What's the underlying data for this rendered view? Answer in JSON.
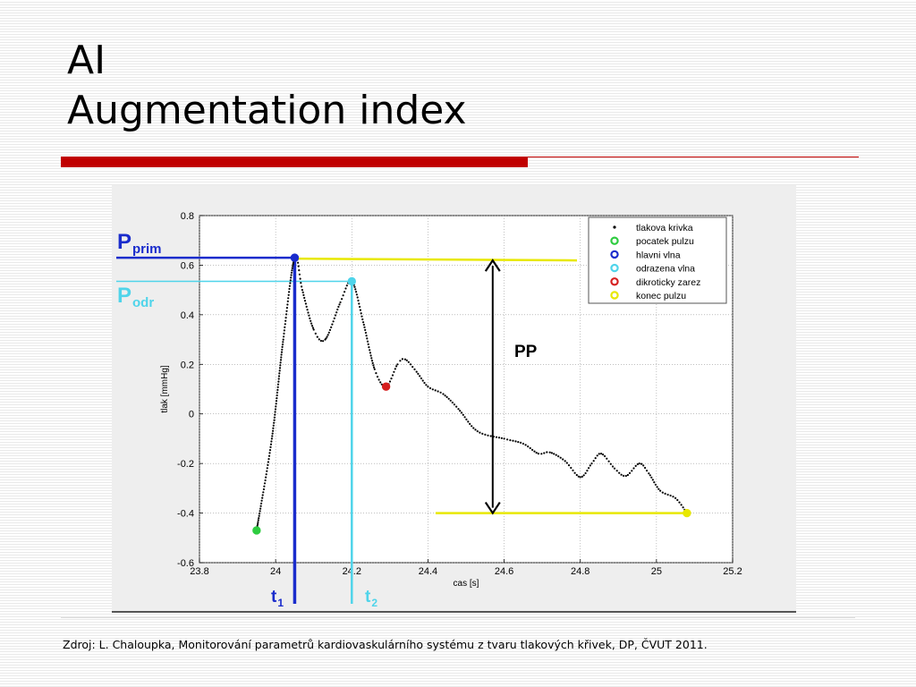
{
  "slide": {
    "title_line1": "AI",
    "title_line2": "Augmentation index",
    "source": "Zdroj: L. Chaloupka, Monitorování parametrů kardiovaskulárního systému z tvaru tlakových křivek, DP, ČVUT 2011."
  },
  "colors": {
    "accent_red": "#c00000",
    "primary_blue": "#1a2ccc",
    "reflected_cyan": "#4fd4ea",
    "marker_yellow": "#e8e800",
    "start_green": "#2ecc40",
    "notch_red": "#d62020"
  },
  "annotations": {
    "p_prim_main": "P",
    "p_prim_sub": "prim",
    "p_odr_main": "P",
    "p_odr_sub": "odr",
    "t1_main": "t",
    "t1_sub": "1",
    "t2_main": "t",
    "t2_sub": "2",
    "pp": "PP"
  },
  "chart_data": {
    "type": "scatter",
    "xlabel": "cas [s]",
    "ylabel": "tlak [mmHg]",
    "xlim": [
      23.8,
      25.2
    ],
    "ylim": [
      -0.6,
      0.8
    ],
    "xticks": [
      23.8,
      24,
      24.2,
      24.4,
      24.6,
      24.8,
      25,
      25.2
    ],
    "yticks": [
      0.8,
      0.6,
      0.4,
      0.2,
      0,
      -0.2,
      -0.4,
      -0.6
    ],
    "x_tick_labels": [
      "23.8",
      "24",
      "24.2",
      "24.4",
      "24.6",
      "24.8",
      "25",
      "25.2"
    ],
    "y_tick_labels": [
      "0.8",
      "0.6",
      "0.4",
      "0.2",
      "0",
      "-0.2",
      "-0.4",
      "-0.6"
    ],
    "grid": true,
    "legend_position": "top-right",
    "legend": [
      {
        "label": "tlakova krivka",
        "marker": "dot",
        "color": "#000000"
      },
      {
        "label": "pocatek pulzu",
        "marker": "circle",
        "color": "#2ecc40"
      },
      {
        "label": "hlavni vlna",
        "marker": "circle",
        "color": "#1a2ccc"
      },
      {
        "label": "odrazena vlna",
        "marker": "circle",
        "color": "#4fd4ea"
      },
      {
        "label": "dikroticky zarez",
        "marker": "circle",
        "color": "#d62020"
      },
      {
        "label": "konec pulzu",
        "marker": "circle",
        "color": "#e8e800"
      }
    ],
    "series": [
      {
        "name": "tlakova krivka",
        "points": [
          [
            23.95,
            -0.47
          ],
          [
            23.99,
            -0.1
          ],
          [
            24.02,
            0.3
          ],
          [
            24.05,
            0.63
          ],
          [
            24.07,
            0.5
          ],
          [
            24.1,
            0.34
          ],
          [
            24.13,
            0.3
          ],
          [
            24.17,
            0.45
          ],
          [
            24.2,
            0.535
          ],
          [
            24.23,
            0.37
          ],
          [
            24.26,
            0.18
          ],
          [
            24.29,
            0.11
          ],
          [
            24.32,
            0.2
          ],
          [
            24.34,
            0.22
          ],
          [
            24.37,
            0.17
          ],
          [
            24.4,
            0.11
          ],
          [
            24.44,
            0.08
          ],
          [
            24.48,
            0.02
          ],
          [
            24.53,
            -0.07
          ],
          [
            24.6,
            -0.1
          ],
          [
            24.65,
            -0.12
          ],
          [
            24.69,
            -0.16
          ],
          [
            24.72,
            -0.155
          ],
          [
            24.76,
            -0.19
          ],
          [
            24.8,
            -0.255
          ],
          [
            24.83,
            -0.2
          ],
          [
            24.855,
            -0.16
          ],
          [
            24.89,
            -0.22
          ],
          [
            24.92,
            -0.25
          ],
          [
            24.955,
            -0.2
          ],
          [
            24.98,
            -0.24
          ],
          [
            25.01,
            -0.31
          ],
          [
            25.05,
            -0.34
          ],
          [
            25.08,
            -0.4
          ]
        ]
      }
    ],
    "markers": [
      {
        "name": "pocatek pulzu",
        "x": 23.95,
        "y": -0.47,
        "color": "#2ecc40"
      },
      {
        "name": "hlavni vlna",
        "x": 24.05,
        "y": 0.63,
        "color": "#1a2ccc"
      },
      {
        "name": "odrazena vlna",
        "x": 24.2,
        "y": 0.535,
        "color": "#4fd4ea"
      },
      {
        "name": "dikroticky zarez",
        "x": 24.29,
        "y": 0.11,
        "color": "#d62020"
      },
      {
        "name": "konec pulzu",
        "x": 25.08,
        "y": -0.4,
        "color": "#e8e800"
      }
    ]
  }
}
